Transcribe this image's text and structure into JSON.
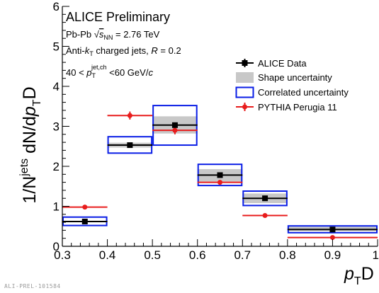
{
  "chart_data": {
    "type": "scatter",
    "ylabel": "1/N^jets dN/dp_T D",
    "xlabel": "p_T D",
    "xlim": [
      0.3,
      1.0
    ],
    "ylim": [
      0,
      6
    ],
    "xticks": [
      "0.3",
      "0.4",
      "0.5",
      "0.6",
      "0.7",
      "0.8",
      "0.9",
      "1"
    ],
    "yticks": [
      "0",
      "1",
      "2",
      "3",
      "4",
      "5",
      "6"
    ],
    "grid": false,
    "legend_position": "top-right",
    "annotations": {
      "title": "ALICE Preliminary",
      "system": "Pb-Pb  √s_NN = 2.76 TeV",
      "jets": "Anti-k_T  charged jets, R = 0.2",
      "ptrange": "40 < p_T^jet,ch <60 GeV/c",
      "image_id": "ALI-PREL-101584"
    },
    "legend": {
      "data": "ALICE Data",
      "shape": "Shape uncertainty",
      "corr": "Correlated uncertainty",
      "pythia": "PYTHIA Perugia 11"
    },
    "colors": {
      "data": "#000000",
      "shape": "#c8c8c8",
      "corr": "#0a1ee6",
      "pythia": "#e81c1c"
    },
    "bins": [
      {
        "xlo": 0.3,
        "xhi": 0.4,
        "y": 0.62,
        "shape": [
          0.62,
          0.62
        ],
        "corr": [
          0.52,
          0.73
        ],
        "pythia": 0.98,
        "pythia_err": 0.04
      },
      {
        "xlo": 0.4,
        "xhi": 0.5,
        "y": 2.53,
        "shape": [
          2.47,
          2.59
        ],
        "corr": [
          2.33,
          2.74
        ],
        "pythia": 3.27,
        "pythia_err": 0.1
      },
      {
        "xlo": 0.5,
        "xhi": 0.6,
        "y": 3.03,
        "shape": [
          2.82,
          3.25
        ],
        "corr": [
          2.53,
          3.52
        ],
        "pythia": 2.9,
        "pythia_err": 0.1
      },
      {
        "xlo": 0.6,
        "xhi": 0.7,
        "y": 1.78,
        "shape": [
          1.62,
          1.93
        ],
        "corr": [
          1.52,
          2.05
        ],
        "pythia": 1.6,
        "pythia_err": 0.04
      },
      {
        "xlo": 0.7,
        "xhi": 0.8,
        "y": 1.2,
        "shape": [
          1.08,
          1.32
        ],
        "corr": [
          1.02,
          1.38
        ],
        "pythia": 0.77,
        "pythia_err": 0.03
      },
      {
        "xlo": 0.8,
        "xhi": 1.0,
        "y": 0.42,
        "shape": [
          0.38,
          0.49
        ],
        "corr": [
          0.34,
          0.51
        ],
        "pythia": 0.22,
        "pythia_err": 0.02
      }
    ]
  }
}
